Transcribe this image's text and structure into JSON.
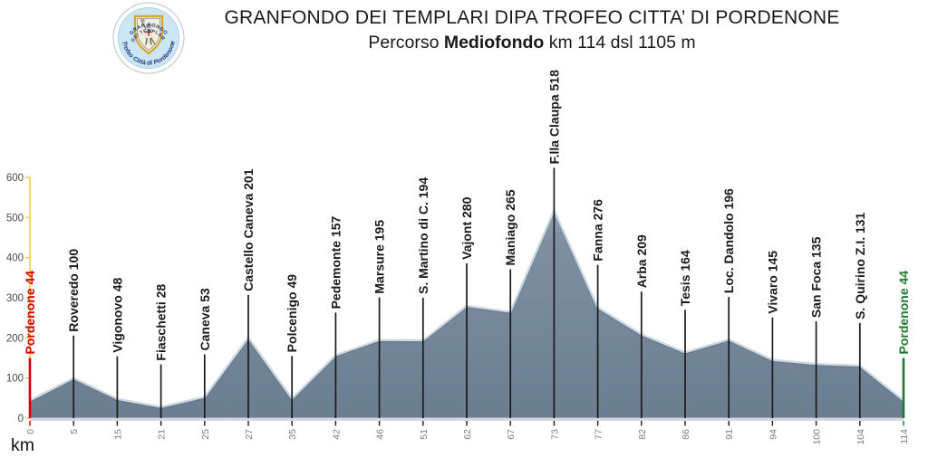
{
  "header": {
    "title": "GRANFONDO DEI TEMPLARI DIPA TROFEO CITTA’ DI PORDENONE",
    "subtitle_prefix": "Percorso ",
    "subtitle_bold": "Mediofondo",
    "subtitle_suffix": " km 114 dsl 1105 m"
  },
  "logo": {
    "arc_top_1": "GRAN FONDO",
    "arc_top_2": "DEI TEMPLARI",
    "arc_bottom": "Trofeo Città di Pordenone"
  },
  "chart_data": {
    "type": "area",
    "title": "Elevation profile Mediofondo",
    "xlabel": "km",
    "ylabel": "",
    "x_axis_type": "category",
    "grid": false,
    "legend": false,
    "ylim": [
      0,
      600
    ],
    "yticks": [
      0,
      100,
      200,
      300,
      400,
      500,
      600
    ],
    "x": [
      0,
      5,
      15,
      21,
      25,
      27,
      35,
      42,
      46,
      51,
      62,
      67,
      73,
      77,
      82,
      86,
      91,
      94,
      100,
      104,
      114
    ],
    "values": [
      44,
      100,
      48,
      28,
      53,
      201,
      49,
      157,
      195,
      194,
      280,
      265,
      518,
      276,
      209,
      164,
      196,
      145,
      135,
      131,
      44
    ],
    "labels": [
      "Pordenone 44",
      "Roveredo 100",
      "Vigonovo 48",
      "Fiaschetti 28",
      "Caneva 53",
      "Castello Caneva 201",
      "Polcenigo 49",
      "Pedemonte 157",
      "Marsure 195",
      "S. Martino di C. 194",
      "Vajont 280",
      "Maniago 265",
      "F.lla Claupa 518",
      "Fanna 276",
      "Arba 209",
      "Tesis 164",
      "Loc. Dandolo 196",
      "Vivaro 145",
      "San Foca 135",
      "S. Quirino Z.I. 131",
      "Pordenone 44"
    ],
    "colors": {
      "area_fill_top": "#97A8B7",
      "area_fill_mid": "#7E90A2",
      "area_fill_bottom": "#6B7E91",
      "area_edge_light": "#CDD9E2",
      "area_edge_dark": "#627587",
      "marker_line": "#1a1a1a",
      "marker_label": "#1a1a1a",
      "start_color": "#D90000",
      "finish_color": "#1E7B34",
      "y_axis_line": "#F7CE46",
      "y_tick_text": "#4a4a4a",
      "x_tick_text": "#7f7f7f",
      "baseline_band": "#D3D7DB",
      "km_label_color": "#111111"
    }
  }
}
